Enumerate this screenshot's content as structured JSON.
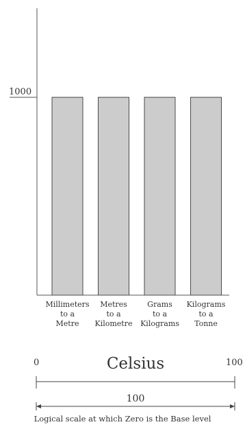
{
  "chart_data": {
    "type": "bar",
    "categories": [
      [
        "Millimeters",
        "to a",
        "Metre"
      ],
      [
        "Metres",
        "to a",
        "Kilometre"
      ],
      [
        "Grams",
        "to a",
        "Kilograms"
      ],
      [
        "Kilograms",
        "to a",
        "Tonne"
      ]
    ],
    "values": [
      1000,
      1000,
      1000,
      1000
    ],
    "ylim": [
      0,
      1450
    ],
    "yticks": [
      "1000"
    ],
    "title": "",
    "xlabel": "",
    "ylabel": "",
    "bar_color": "#cccccc",
    "bar_edge_color": "#4a4a4a"
  },
  "scale": {
    "left_value": "0",
    "title": "Celsius",
    "right_value": "100",
    "span_value": "100",
    "caption": "Logical scale at which Zero is the Base level"
  }
}
